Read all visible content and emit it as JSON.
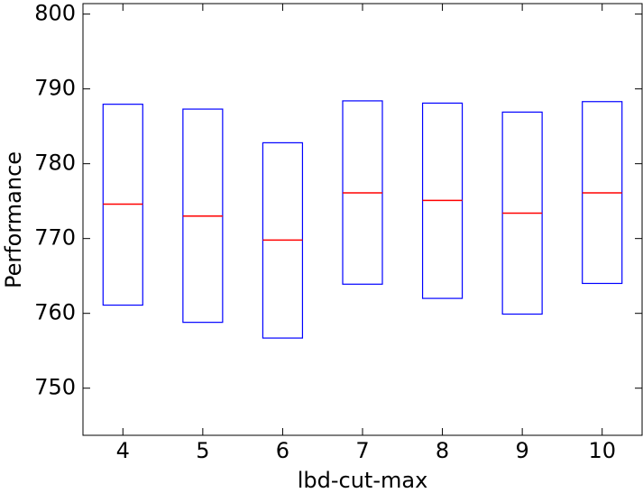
{
  "chart_data": {
    "type": "box",
    "xlabel": "lbd-cut-max",
    "ylabel": "Performance",
    "categories": [
      "4",
      "5",
      "6",
      "7",
      "8",
      "9",
      "10"
    ],
    "q1": [
      761.1,
      758.8,
      756.7,
      763.9,
      762.0,
      759.9,
      764.0
    ],
    "median": [
      774.6,
      773.0,
      769.8,
      776.1,
      775.1,
      773.4,
      776.1
    ],
    "q3": [
      787.95,
      787.3,
      782.8,
      788.4,
      788.1,
      786.9,
      788.3
    ],
    "box_color": "#0000ff",
    "median_color": "#ff0000",
    "ylim": [
      743.7,
      801.4
    ],
    "yticks": [
      750,
      760,
      770,
      780,
      790,
      800
    ]
  }
}
